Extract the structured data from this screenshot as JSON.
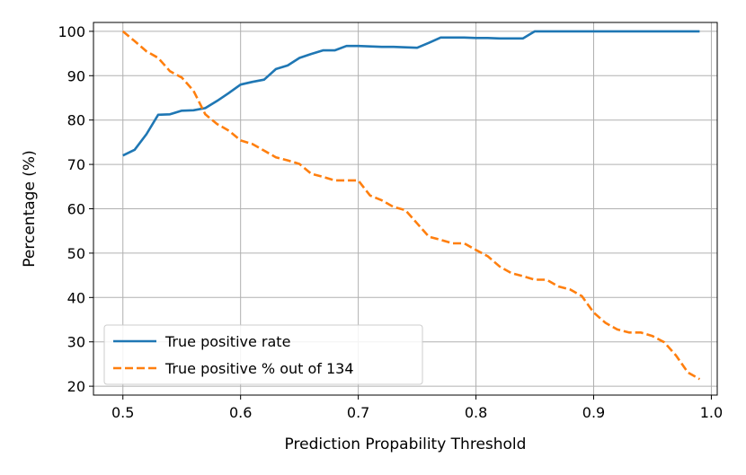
{
  "chart_data": {
    "type": "line",
    "title": "",
    "xlabel": "Prediction Propability Threshold",
    "ylabel": "Percentage (%)",
    "xlim": [
      0.475,
      1.005
    ],
    "ylim": [
      18,
      102
    ],
    "x_ticks": [
      0.5,
      0.6,
      0.7,
      0.8,
      0.9,
      1.0
    ],
    "x_tick_labels": [
      "0.5",
      "0.6",
      "0.7",
      "0.8",
      "0.9",
      "1.0"
    ],
    "y_ticks": [
      20,
      30,
      40,
      50,
      60,
      70,
      80,
      90,
      100
    ],
    "y_tick_labels": [
      "20",
      "30",
      "40",
      "50",
      "60",
      "70",
      "80",
      "90",
      "100"
    ],
    "grid": true,
    "legend_position": "bottom-left",
    "series": [
      {
        "name": "True positive rate",
        "color": "#1f77b4",
        "style": "solid",
        "x": [
          0.5,
          0.51,
          0.52,
          0.53,
          0.54,
          0.55,
          0.56,
          0.57,
          0.58,
          0.59,
          0.6,
          0.61,
          0.62,
          0.63,
          0.64,
          0.65,
          0.66,
          0.67,
          0.68,
          0.69,
          0.7,
          0.71,
          0.72,
          0.73,
          0.74,
          0.75,
          0.76,
          0.77,
          0.78,
          0.79,
          0.8,
          0.81,
          0.82,
          0.83,
          0.84,
          0.85,
          0.86,
          0.87,
          0.88,
          0.89,
          0.9,
          0.91,
          0.92,
          0.93,
          0.94,
          0.95,
          0.96,
          0.97,
          0.98,
          0.99
        ],
        "values": [
          72.0,
          73.3,
          76.8,
          81.2,
          81.3,
          82.1,
          82.2,
          82.7,
          84.3,
          86.1,
          88.0,
          88.6,
          89.1,
          91.5,
          92.3,
          94.0,
          94.9,
          95.7,
          95.7,
          96.7,
          96.7,
          96.6,
          96.5,
          96.5,
          96.4,
          96.3,
          97.4,
          98.6,
          98.6,
          98.6,
          98.5,
          98.5,
          98.4,
          98.4,
          98.4,
          100,
          100,
          100,
          100,
          100,
          100,
          100,
          100,
          100,
          100,
          100,
          100,
          100,
          100,
          100
        ]
      },
      {
        "name": "True positive % out of 134",
        "color": "#ff7f0e",
        "style": "dashed",
        "x": [
          0.5,
          0.51,
          0.52,
          0.53,
          0.54,
          0.55,
          0.56,
          0.57,
          0.58,
          0.59,
          0.6,
          0.61,
          0.62,
          0.63,
          0.64,
          0.65,
          0.66,
          0.67,
          0.68,
          0.69,
          0.7,
          0.71,
          0.72,
          0.73,
          0.74,
          0.75,
          0.76,
          0.77,
          0.78,
          0.79,
          0.8,
          0.81,
          0.82,
          0.83,
          0.84,
          0.85,
          0.86,
          0.87,
          0.88,
          0.89,
          0.9,
          0.91,
          0.92,
          0.93,
          0.94,
          0.95,
          0.96,
          0.97,
          0.98,
          0.99
        ],
        "values": [
          100,
          97.8,
          95.5,
          94.0,
          91.0,
          89.6,
          86.6,
          81.3,
          79.1,
          77.6,
          75.4,
          74.6,
          73.1,
          71.6,
          70.9,
          70.1,
          67.9,
          67.2,
          66.4,
          66.4,
          66.4,
          63.0,
          61.9,
          60.4,
          59.7,
          56.7,
          53.7,
          53.0,
          52.2,
          52.2,
          50.7,
          49.3,
          47.0,
          45.5,
          44.8,
          44.0,
          44.0,
          42.5,
          41.8,
          40.3,
          36.6,
          34.3,
          32.8,
          32.1,
          32.1,
          31.3,
          29.9,
          26.9,
          23.1,
          21.6
        ]
      }
    ]
  }
}
